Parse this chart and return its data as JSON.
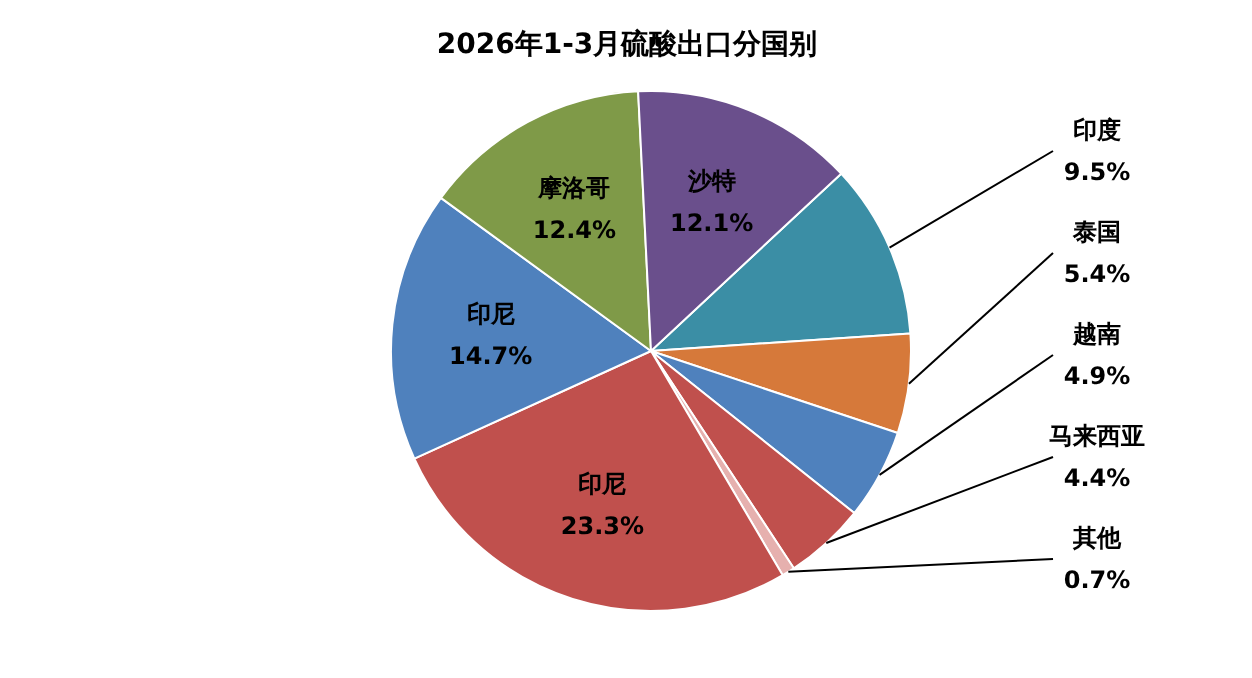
{
  "chart_data": {
    "type": "pie",
    "title": "2026年1-3月硫酸出口分国别",
    "categories": [
      "印度",
      "泰国",
      "越南",
      "马来西亚",
      "其他",
      "印尼",
      "印尼",
      "摩洛哥",
      "沙特"
    ],
    "values": [
      9.5,
      5.4,
      4.9,
      4.4,
      0.7,
      23.3,
      14.7,
      12.4,
      12.1
    ],
    "value_labels": [
      "9.5%",
      "5.4%",
      "4.9%",
      "4.4%",
      "0.7%",
      "23.3%",
      "14.7%",
      "12.4%",
      "12.1%"
    ],
    "colors": [
      "#3b8ea5",
      "#d6793a",
      "#4f81bd",
      "#c0504d",
      "#e6b0ae",
      "#c0504d",
      "#4f81bd",
      "#7f9a48",
      "#6a4f8c"
    ]
  }
}
